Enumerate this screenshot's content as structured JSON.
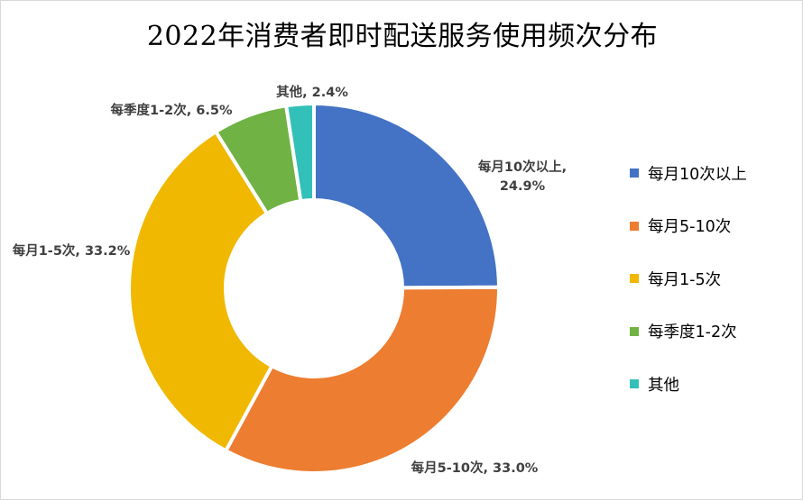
{
  "chart_data": {
    "type": "pie",
    "title": "2022年消费者即时配送服务使用频次分布",
    "categories": [
      "每月10次以上",
      "每月5-10次",
      "每月1-5次",
      "每季度1-2次",
      "其他"
    ],
    "values": [
      24.9,
      33.0,
      33.2,
      6.5,
      2.4
    ],
    "unit": "%",
    "data_labels": [
      "每月10次以上, 24.9%",
      "每月5-10次, 33.0%",
      "每月1-5次, 33.2%",
      "每季度1-2次, 6.5%",
      "其他, 2.4%"
    ],
    "colors": [
      "#4472c4",
      "#ed7d31",
      "#f0b800",
      "#70b244",
      "#33c0b8"
    ],
    "legend_position": "right",
    "donut": true
  }
}
